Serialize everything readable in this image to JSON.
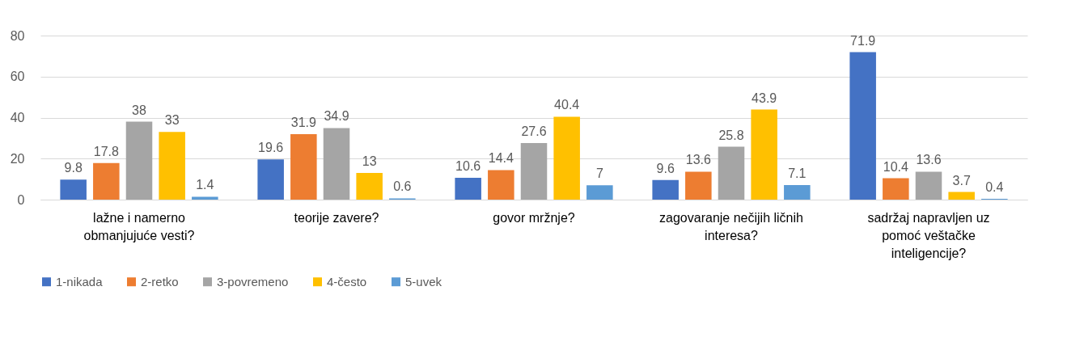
{
  "chart_data": {
    "type": "bar",
    "categories": [
      "lažne i namerno obmanjujuće vesti?",
      "teorije zavere?",
      "govor mržnje?",
      "zagovaranje nečijih ličnih interesa?",
      "sadržaj napravljen uz pomoć veštačke inteligencije?"
    ],
    "series": [
      {
        "name": "1-nikada",
        "color": "#4472c4",
        "values": [
          9.8,
          19.6,
          10.6,
          9.6,
          71.9
        ]
      },
      {
        "name": "2-retko",
        "color": "#ed7d31",
        "values": [
          17.8,
          31.9,
          14.4,
          13.6,
          10.4
        ]
      },
      {
        "name": "3-povremeno",
        "color": "#a5a5a5",
        "values": [
          38,
          34.9,
          27.6,
          25.8,
          13.6
        ]
      },
      {
        "name": "4-često",
        "color": "#ffc000",
        "values": [
          33,
          13,
          40.4,
          43.9,
          3.7
        ]
      },
      {
        "name": "5-uvek",
        "color": "#5b9bd5",
        "values": [
          1.4,
          0.6,
          7,
          7.1,
          0.4
        ]
      }
    ],
    "ylim": [
      0,
      80
    ],
    "yticks": [
      0,
      20,
      40,
      60,
      80
    ],
    "grid": "y",
    "legend": "bottom",
    "data_labels": true
  }
}
